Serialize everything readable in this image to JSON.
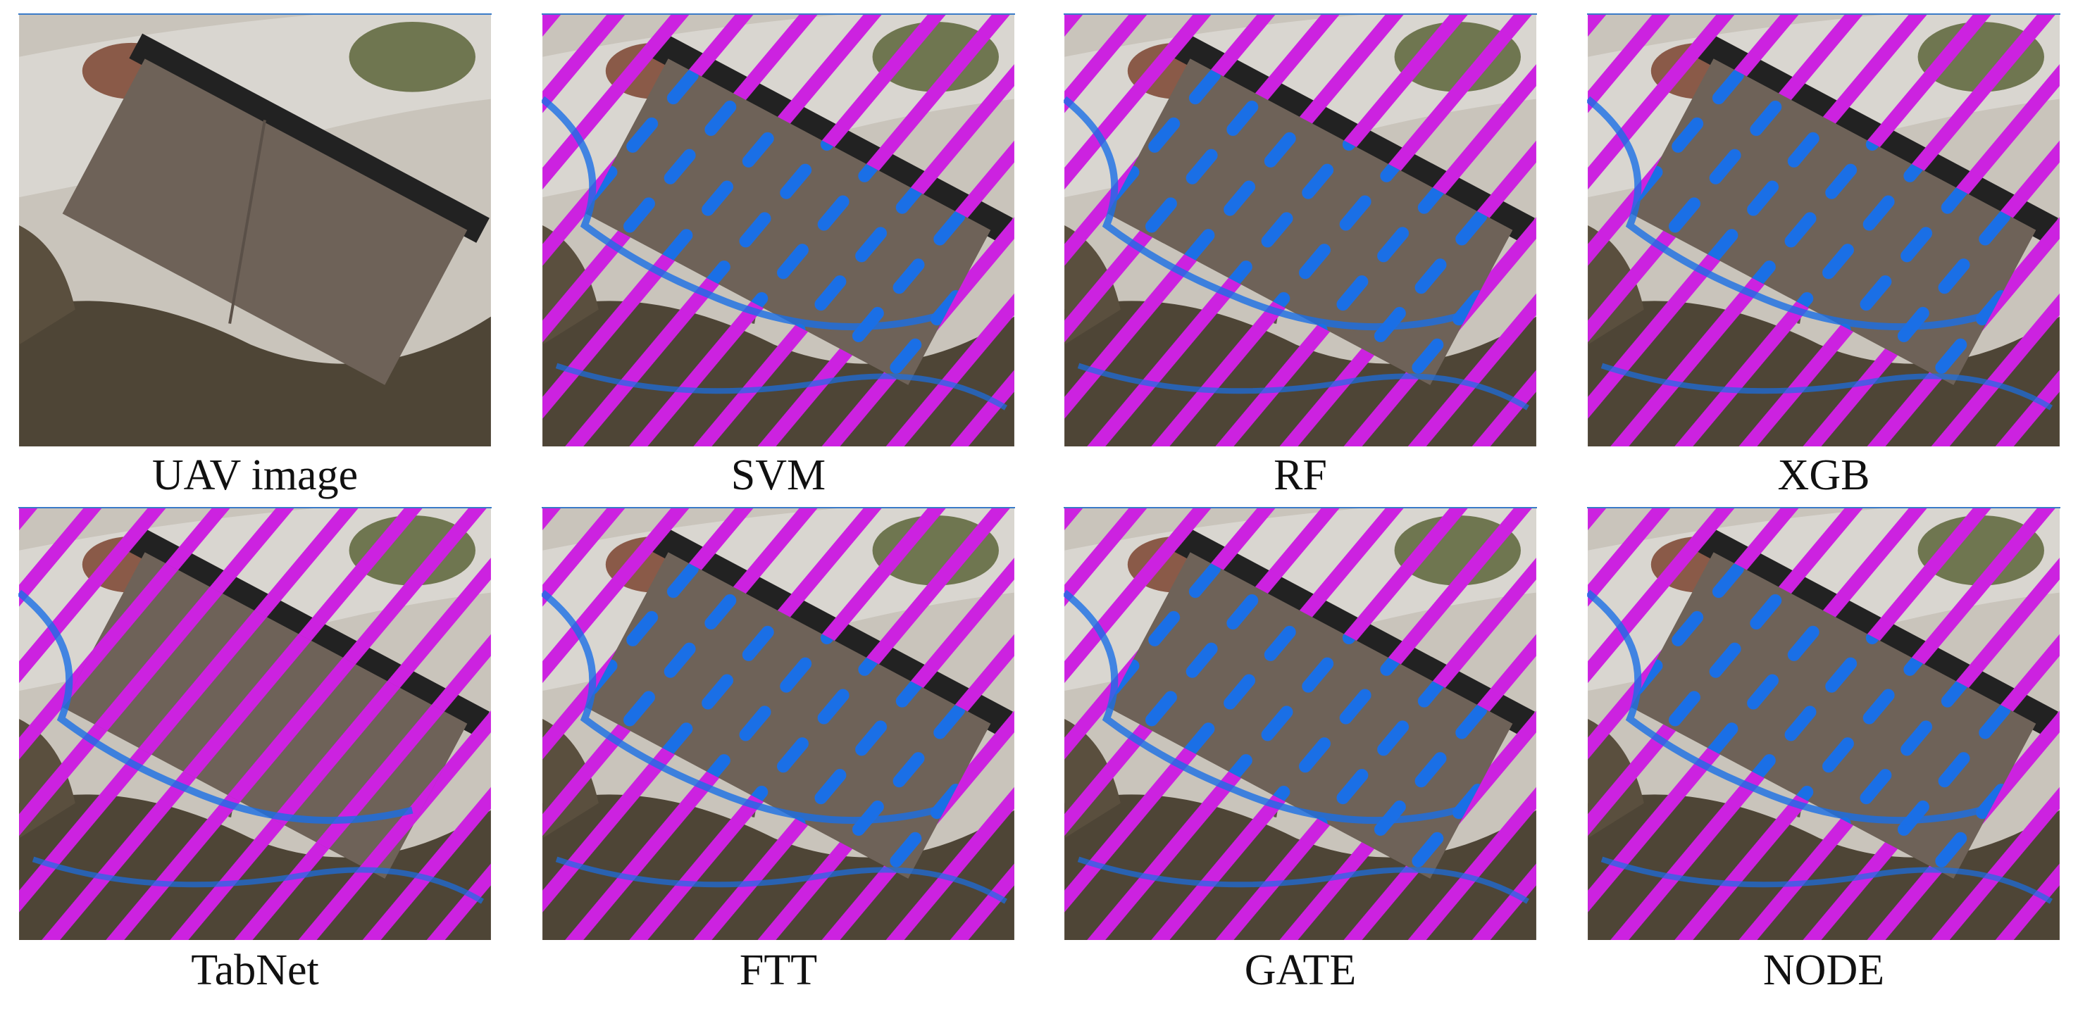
{
  "panels": [
    {
      "label": "UAV image"
    },
    {
      "label": "SVM"
    },
    {
      "label": "RF"
    },
    {
      "label": "XGB"
    },
    {
      "label": "TabNet"
    },
    {
      "label": "FTT"
    },
    {
      "label": "GATE"
    },
    {
      "label": "NODE"
    }
  ]
}
